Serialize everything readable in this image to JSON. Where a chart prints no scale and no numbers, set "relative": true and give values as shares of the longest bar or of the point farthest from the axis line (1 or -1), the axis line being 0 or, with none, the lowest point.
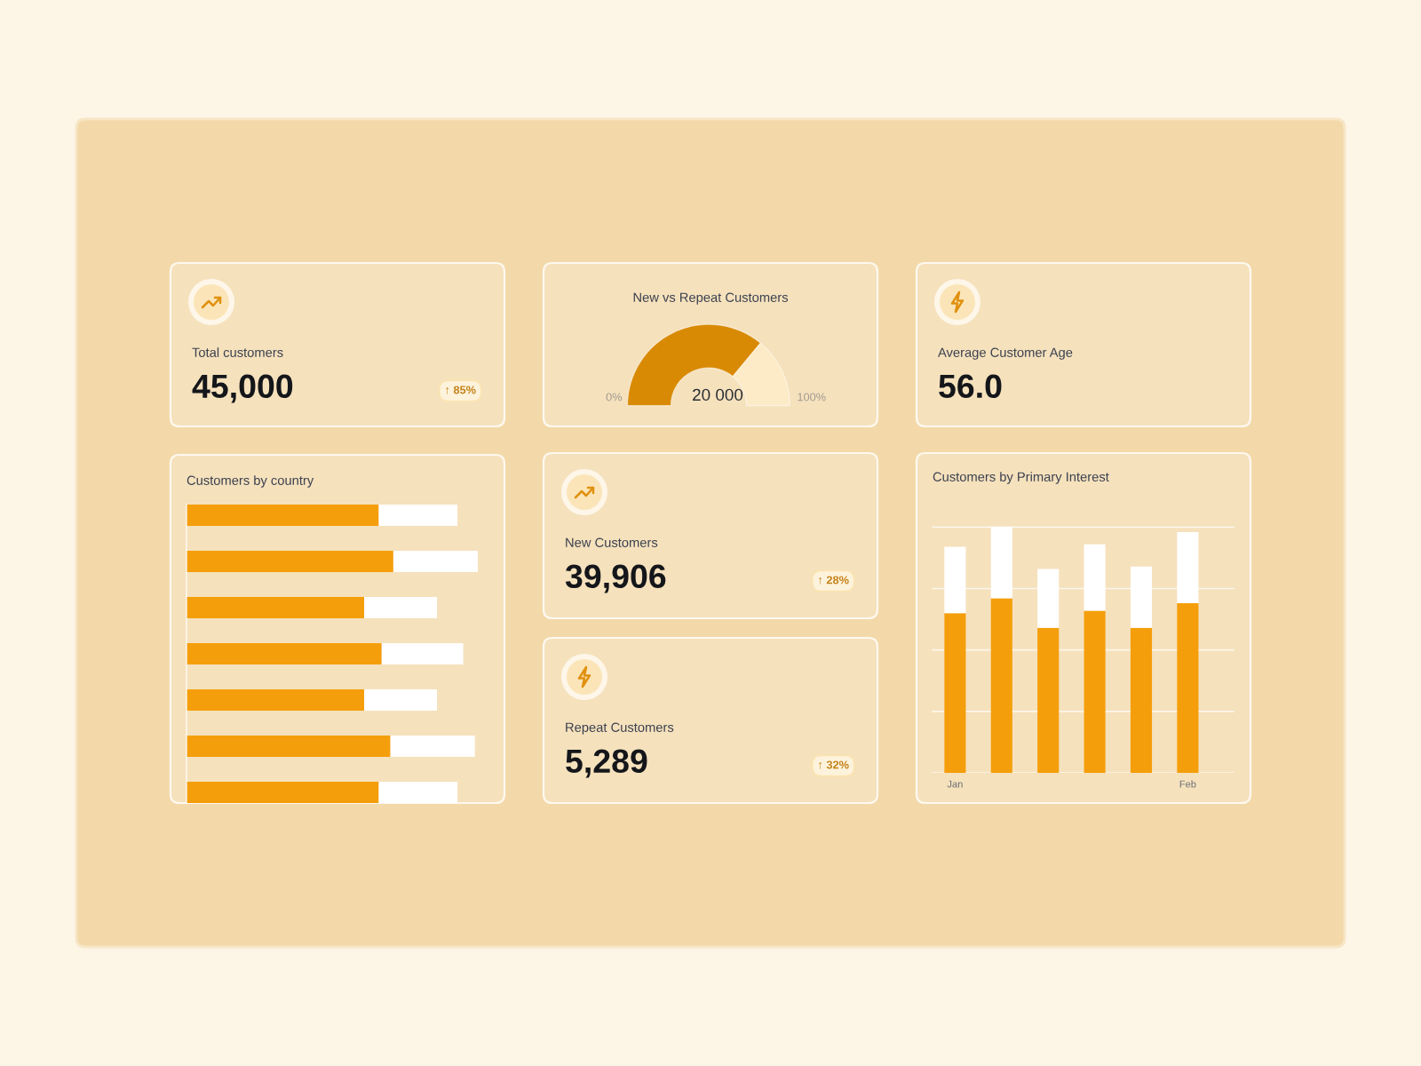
{
  "chart_data": [
    {
      "type": "other",
      "title": "Total customers",
      "annotations": [
        "45,000",
        "↑ 85%"
      ]
    },
    {
      "type": "donut",
      "title": "New vs Repeat Customers",
      "categories": [
        null,
        null
      ],
      "values": [
        72,
        28
      ],
      "colors": [
        "#d98a04",
        "#fdebc7"
      ],
      "annotations": [
        "0%",
        "20 000",
        "100%"
      ]
    },
    {
      "type": "other",
      "title": "Average Customer Age",
      "annotations": [
        "56.0"
      ]
    },
    {
      "type": "bar",
      "title": "Customers by country",
      "orientation": "horizontal",
      "stacked": true,
      "relative": true,
      "categories": [
        null,
        null,
        null,
        null,
        null,
        null,
        null
      ],
      "series": [
        {
          "color": "#f59e0b",
          "values": [
            0.66,
            0.71,
            0.61,
            0.67,
            0.61,
            0.7,
            0.66
          ]
        },
        {
          "color": "#ffffff",
          "values": [
            0.27,
            0.29,
            0.25,
            0.28,
            0.25,
            0.29,
            0.27
          ]
        }
      ]
    },
    {
      "type": "other",
      "title": "New Customers",
      "annotations": [
        "39,906",
        "↑ 28%"
      ]
    },
    {
      "type": "bar",
      "title": "Customers by Primary Interest",
      "stacked": true,
      "relative": true,
      "grid": "y",
      "categories": [
        "Jan",
        null,
        null,
        null,
        null,
        "Feb"
      ],
      "series": [
        {
          "color": "#f59e0b",
          "values": [
            0.65,
            0.71,
            0.59,
            0.66,
            0.59,
            0.69
          ]
        },
        {
          "color": "#ffffff",
          "values": [
            0.27,
            0.29,
            0.24,
            0.27,
            0.25,
            0.29
          ]
        }
      ]
    },
    {
      "type": "other",
      "title": "Repeat Customers",
      "annotations": [
        "5,289",
        "↑ 32%"
      ]
    }
  ]
}
